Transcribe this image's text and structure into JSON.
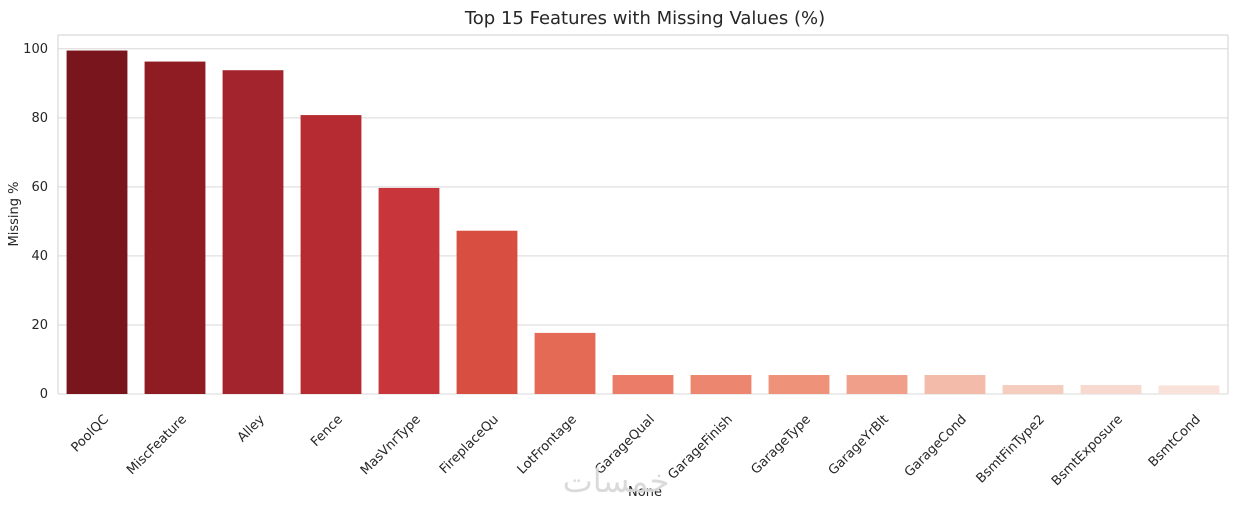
{
  "chart_data": {
    "type": "bar",
    "title": "Top 15 Features with Missing Values (%)",
    "xlabel": "None",
    "ylabel": "Missing %",
    "ylim": [
      0,
      104
    ],
    "yticks": [
      "0",
      "20",
      "40",
      "60",
      "80",
      "100"
    ],
    "grid": true,
    "categories": [
      "PoolQC",
      "MiscFeature",
      "Alley",
      "Fence",
      "MasVnrType",
      "FireplaceQu",
      "LotFrontage",
      "GarageQual",
      "GarageFinish",
      "GarageType",
      "GarageYrBlt",
      "GarageCond",
      "BsmtFinType2",
      "BsmtExposure",
      "BsmtCond"
    ],
    "values": [
      99.5,
      96.3,
      93.8,
      80.8,
      59.7,
      47.3,
      17.7,
      5.5,
      5.5,
      5.5,
      5.5,
      5.5,
      2.6,
      2.6,
      2.5
    ],
    "colors": [
      "#79151D",
      "#8E1C22",
      "#A3242C",
      "#B62B32",
      "#C8363C",
      "#D84E41",
      "#E56A55",
      "#EB7C67",
      "#ED866F",
      "#EE927A",
      "#F0A08A",
      "#F2BBAA",
      "#F5CDBF",
      "#F7D9CF",
      "#F9E2DA"
    ]
  },
  "watermark": {
    "text": "خمسات"
  }
}
